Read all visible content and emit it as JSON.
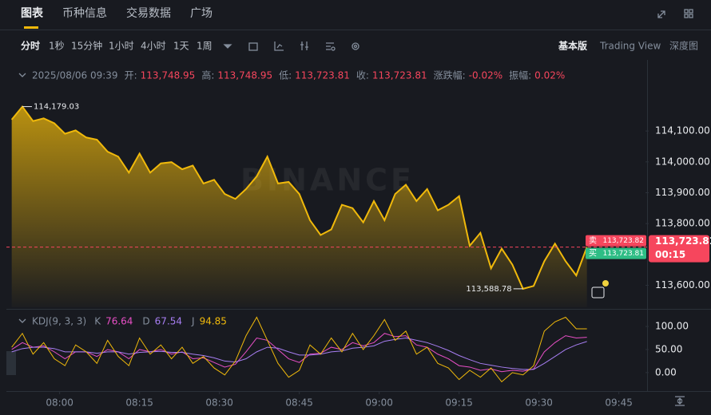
{
  "tabs": [
    "图表",
    "币种信息",
    "交易数据",
    "广场"
  ],
  "intervals": [
    "分时",
    "1秒",
    "15分钟",
    "1小时",
    "4小时",
    "1天",
    "1周"
  ],
  "views": [
    "基本版",
    "Trading View",
    "深度图"
  ],
  "watermark": "BINANCE",
  "chart_data": [
    {
      "type": "area",
      "info": {
        "date": "2025/08/06 09:39",
        "fields": [
          {
            "label": "开:",
            "value": "113,748.95"
          },
          {
            "label": "高:",
            "value": "113,748.95"
          },
          {
            "label": "低:",
            "value": "113,723.81"
          },
          {
            "label": "收:",
            "value": "113,723.81"
          },
          {
            "label": "涨跌幅:",
            "value": "-0.02%"
          },
          {
            "label": "振幅:",
            "value": "0.02%"
          }
        ]
      },
      "x": [
        "07:51",
        "07:53",
        "07:55",
        "07:57",
        "07:59",
        "08:01",
        "08:03",
        "08:05",
        "08:07",
        "08:09",
        "08:11",
        "08:13",
        "08:15",
        "08:17",
        "08:19",
        "08:21",
        "08:23",
        "08:25",
        "08:27",
        "08:29",
        "08:31",
        "08:33",
        "08:35",
        "08:37",
        "08:39",
        "08:41",
        "08:43",
        "08:45",
        "08:47",
        "08:49",
        "08:51",
        "08:53",
        "08:55",
        "08:57",
        "08:59",
        "09:01",
        "09:03",
        "09:05",
        "09:07",
        "09:09",
        "09:11",
        "09:13",
        "09:15",
        "09:17",
        "09:19",
        "09:21",
        "09:23",
        "09:25",
        "09:27",
        "09:29",
        "09:31",
        "09:33",
        "09:35",
        "09:37",
        "09:39"
      ],
      "values": [
        114137,
        114179.03,
        114132,
        114141,
        114125,
        114091,
        114102,
        114079,
        114072,
        114033,
        114017,
        113965,
        114027,
        113965,
        113995,
        113999,
        113976,
        113988,
        113930,
        113942,
        113896,
        113880,
        113912,
        113953,
        114017,
        113930,
        113935,
        113896,
        113811,
        113763,
        113781,
        113861,
        113850,
        113804,
        113873,
        113811,
        113896,
        113926,
        113873,
        113912,
        113843,
        113861,
        113889,
        113728,
        113770,
        113655,
        113719,
        113667,
        113588.78,
        113598,
        113678,
        113735,
        113678,
        113632,
        113723.81
      ],
      "color": "#f0b90b",
      "xlim": [
        "07:50",
        "09:50"
      ],
      "xticks": [
        "08:00",
        "08:15",
        "08:30",
        "08:45",
        "09:00",
        "09:15",
        "09:30",
        "09:45"
      ],
      "ylim": [
        113529,
        114240
      ],
      "yticks": [
        {
          "value": 114100,
          "label": "114,100.00"
        },
        {
          "value": 114000,
          "label": "114,000.00"
        },
        {
          "value": 113900,
          "label": "113,900.00"
        },
        {
          "value": 113800,
          "label": "113,800.00"
        },
        {
          "value": 113600,
          "label": "113,600.00"
        }
      ],
      "annotations": {
        "high": {
          "value": 114179.03,
          "label": "114,179.03"
        },
        "low": {
          "value": 113588.78,
          "label": "113,588.78"
        }
      },
      "last_price": {
        "value": 113723.81,
        "label": "113,723.81",
        "countdown": "00:15"
      },
      "ask": {
        "label": "卖",
        "value": 113723.82,
        "value_label": "113,723.82"
      },
      "bid": {
        "label": "买",
        "value": 113723.81,
        "value_label": "113,723.81"
      }
    },
    {
      "type": "line",
      "title": "KDJ(9, 3, 3)",
      "series": [
        {
          "name": "K",
          "color": "#e84fc6",
          "values": [
            50,
            65,
            55,
            58,
            45,
            30,
            45,
            45,
            35,
            50,
            45,
            30,
            50,
            45,
            50,
            40,
            45,
            30,
            32,
            22,
            12,
            18,
            45,
            75,
            70,
            50,
            30,
            22,
            40,
            42,
            55,
            50,
            65,
            58,
            65,
            85,
            78,
            80,
            60,
            55,
            40,
            30,
            15,
            12,
            5,
            8,
            2,
            5,
            3,
            8,
            45,
            65,
            80,
            75,
            76.64
          ]
        },
        {
          "name": "D",
          "color": "#a77ef2",
          "values": [
            45,
            52,
            55,
            55,
            52,
            45,
            45,
            45,
            42,
            45,
            45,
            40,
            44,
            45,
            46,
            44,
            44,
            40,
            37,
            32,
            25,
            23,
            30,
            45,
            55,
            53,
            45,
            38,
            38,
            40,
            45,
            47,
            53,
            55,
            58,
            68,
            72,
            75,
            70,
            65,
            57,
            48,
            37,
            28,
            20,
            16,
            12,
            9,
            7,
            7,
            20,
            35,
            50,
            60,
            67.54
          ]
        },
        {
          "name": "J",
          "color": "#f0b90b",
          "values": [
            55,
            85,
            40,
            65,
            30,
            15,
            60,
            45,
            20,
            70,
            35,
            15,
            75,
            40,
            60,
            30,
            55,
            20,
            35,
            10,
            -5,
            25,
            80,
            120,
            70,
            20,
            -10,
            5,
            60,
            40,
            75,
            45,
            85,
            50,
            80,
            115,
            70,
            90,
            40,
            55,
            20,
            10,
            -15,
            5,
            -10,
            10,
            -20,
            0,
            -5,
            15,
            90,
            110,
            120,
            95,
            94.85
          ]
        }
      ],
      "ylim": [
        -40,
        133
      ],
      "yticks": [
        {
          "value": 100,
          "label": "100.00"
        },
        {
          "value": 50,
          "label": "50.00"
        },
        {
          "value": 0,
          "label": "0.00"
        }
      ]
    }
  ]
}
